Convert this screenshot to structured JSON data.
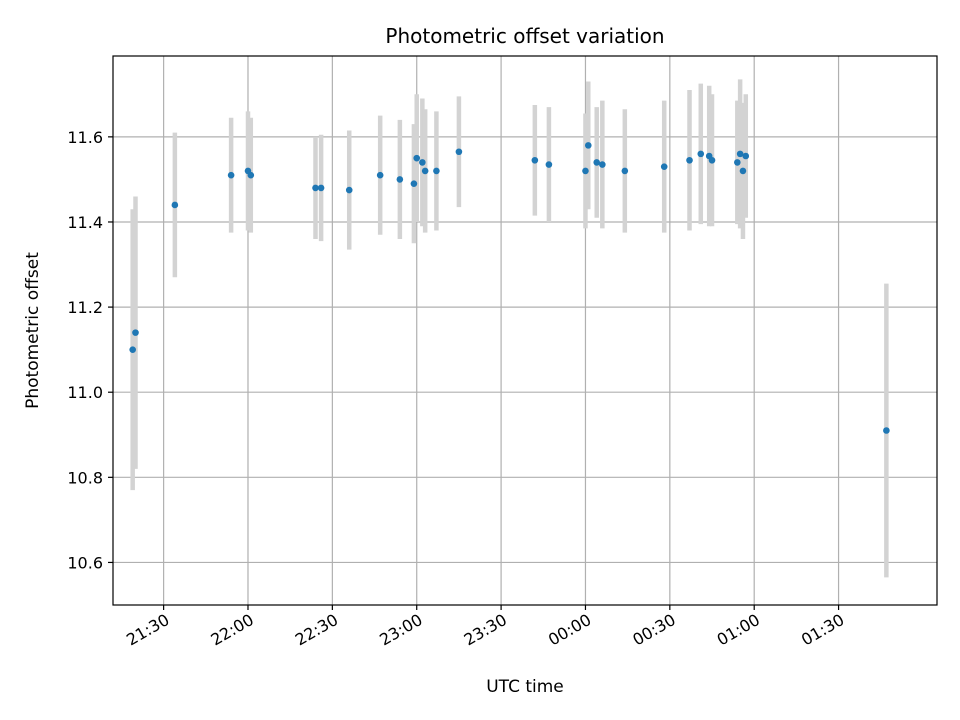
{
  "chart_data": {
    "type": "scatter",
    "title": "Photometric offset variation",
    "xlabel": "UTC time",
    "ylabel": "Photometric offset",
    "grid": true,
    "ylim": [
      10.5,
      11.79
    ],
    "xlim": [
      "21:12",
      "02:05"
    ],
    "x_ticks": [
      "21:30",
      "22:00",
      "22:30",
      "23:00",
      "23:30",
      "00:00",
      "00:30",
      "01:00",
      "01:30"
    ],
    "y_ticks": [
      "10.6",
      "10.8",
      "11.0",
      "11.2",
      "11.4",
      "11.6"
    ],
    "marker_color": "#1f77b4",
    "errorbar_color": "#d3d3d3",
    "points": [
      {
        "t": "21:19",
        "y": 11.1,
        "err": 0.33
      },
      {
        "t": "21:20",
        "y": 11.14,
        "err": 0.32
      },
      {
        "t": "21:34",
        "y": 11.44,
        "err": 0.17
      },
      {
        "t": "21:54",
        "y": 11.51,
        "err": 0.135
      },
      {
        "t": "22:00",
        "y": 11.52,
        "err": 0.14
      },
      {
        "t": "22:01",
        "y": 11.51,
        "err": 0.135
      },
      {
        "t": "22:24",
        "y": 11.48,
        "err": 0.12
      },
      {
        "t": "22:26",
        "y": 11.48,
        "err": 0.125
      },
      {
        "t": "22:36",
        "y": 11.475,
        "err": 0.14
      },
      {
        "t": "22:47",
        "y": 11.51,
        "err": 0.14
      },
      {
        "t": "22:54",
        "y": 11.5,
        "err": 0.14
      },
      {
        "t": "22:59",
        "y": 11.49,
        "err": 0.14
      },
      {
        "t": "23:00",
        "y": 11.55,
        "err": 0.15
      },
      {
        "t": "23:02",
        "y": 11.54,
        "err": 0.15
      },
      {
        "t": "23:03",
        "y": 11.52,
        "err": 0.145
      },
      {
        "t": "23:07",
        "y": 11.52,
        "err": 0.14
      },
      {
        "t": "23:15",
        "y": 11.565,
        "err": 0.13
      },
      {
        "t": "23:42",
        "y": 11.545,
        "err": 0.13
      },
      {
        "t": "23:47",
        "y": 11.535,
        "err": 0.135
      },
      {
        "t": "00:00",
        "y": 11.52,
        "err": 0.135
      },
      {
        "t": "00:01",
        "y": 11.58,
        "err": 0.15
      },
      {
        "t": "00:04",
        "y": 11.54,
        "err": 0.13
      },
      {
        "t": "00:06",
        "y": 11.535,
        "err": 0.15
      },
      {
        "t": "00:14",
        "y": 11.52,
        "err": 0.145
      },
      {
        "t": "00:28",
        "y": 11.53,
        "err": 0.155
      },
      {
        "t": "00:37",
        "y": 11.545,
        "err": 0.165
      },
      {
        "t": "00:41",
        "y": 11.56,
        "err": 0.165
      },
      {
        "t": "00:44",
        "y": 11.555,
        "err": 0.165
      },
      {
        "t": "00:45",
        "y": 11.545,
        "err": 0.155
      },
      {
        "t": "00:54",
        "y": 11.54,
        "err": 0.145
      },
      {
        "t": "00:55",
        "y": 11.56,
        "err": 0.175
      },
      {
        "t": "00:56",
        "y": 11.52,
        "err": 0.16
      },
      {
        "t": "00:57",
        "y": 11.555,
        "err": 0.145
      },
      {
        "t": "01:47",
        "y": 10.91,
        "err": 0.345
      }
    ]
  }
}
